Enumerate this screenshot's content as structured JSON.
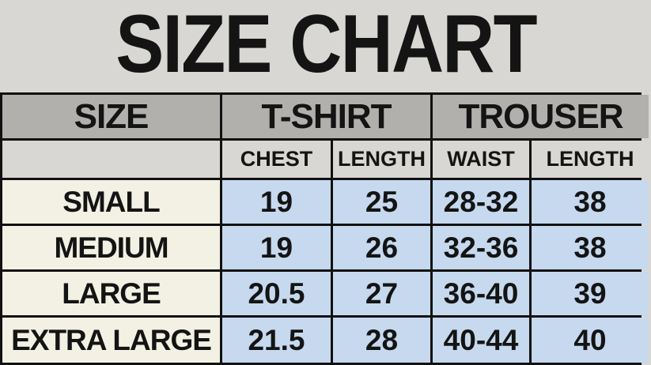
{
  "chart_data": {
    "type": "table",
    "title": "SIZE CHART",
    "column_groups": [
      {
        "label": "SIZE",
        "span": 1
      },
      {
        "label": "T-SHIRT",
        "span": 2
      },
      {
        "label": "TROUSER",
        "span": 2
      }
    ],
    "sub_headers": [
      "",
      "CHEST",
      "LENGTH",
      "WAIST",
      "LENGTH"
    ],
    "rows": [
      {
        "size": "SMALL",
        "values": [
          "19",
          "25",
          "28-32",
          "38"
        ]
      },
      {
        "size": "MEDIUM",
        "values": [
          "19",
          "26",
          "32-36",
          "38"
        ]
      },
      {
        "size": "LARGE",
        "values": [
          "20.5",
          "27",
          "36-40",
          "39"
        ]
      },
      {
        "size": "EXTRA LARGE",
        "values": [
          "21.5",
          "28",
          "40-44",
          "40"
        ]
      }
    ]
  },
  "colors": {
    "page_background": "#d8d7d3",
    "header_background": "#b2b0ad",
    "subheader_background": "#d8d7d3",
    "size_column_background": "#f2f1e3",
    "value_cell_background": "#c6d9ee",
    "gridline": "#111111",
    "text": "#141414"
  }
}
